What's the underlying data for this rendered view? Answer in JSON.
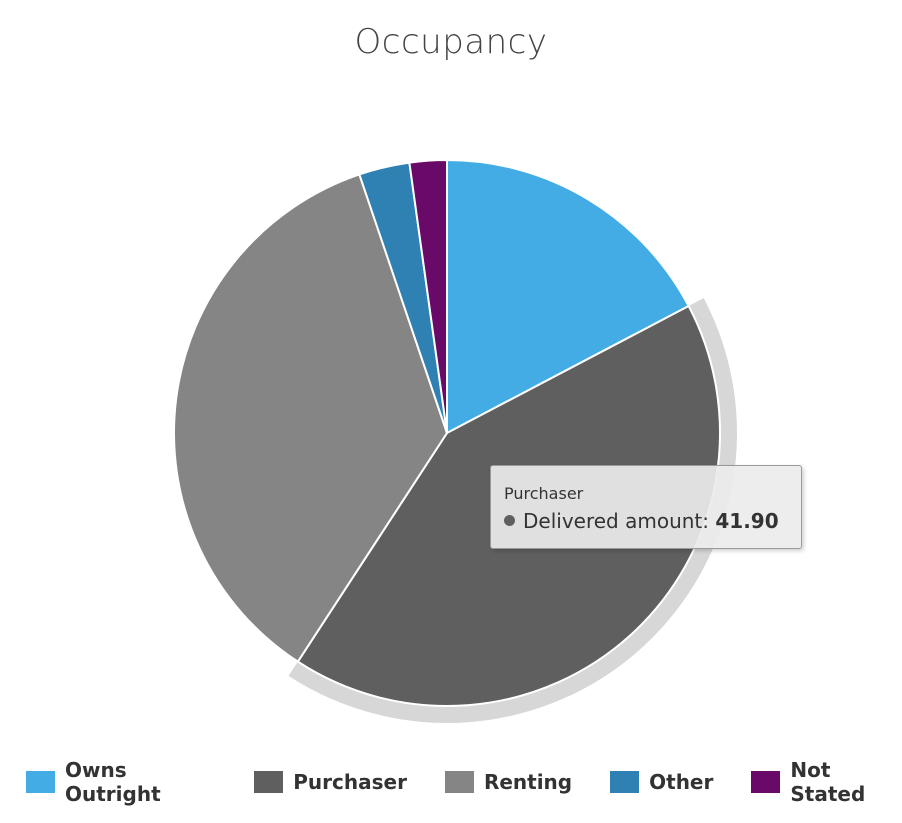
{
  "chart_data": {
    "type": "pie",
    "title": "Occupancy",
    "series_name": "Delivered amount",
    "categories": [
      "Owns Outright",
      "Purchaser",
      "Renting",
      "Other",
      "Not Stated"
    ],
    "values": [
      17.3,
      41.9,
      35.6,
      3.0,
      2.2
    ],
    "colors": [
      "#43ace4",
      "#5f5f5f",
      "#858585",
      "#2f80b3",
      "#6a0a68"
    ],
    "highlighted": "Purchaser",
    "legend_position": "bottom"
  },
  "tooltip": {
    "header": "Purchaser",
    "series": "Delivered amount:",
    "value": "41.90",
    "dot_color": "#5f5f5f"
  }
}
